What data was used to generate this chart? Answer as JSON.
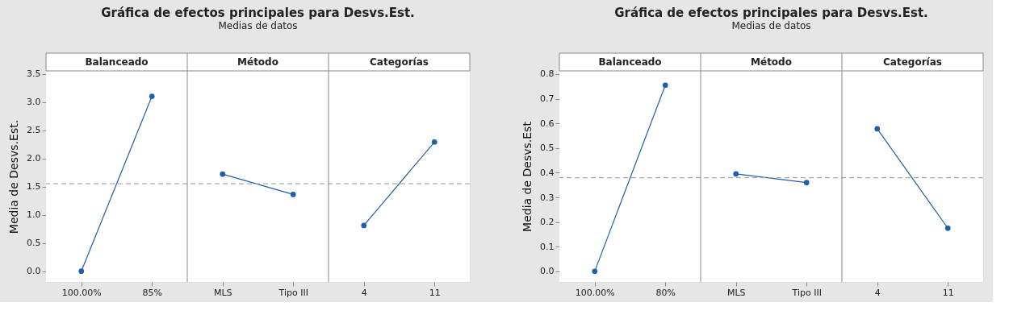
{
  "chart_data": [
    {
      "type": "line",
      "title": "Gráfica de efectos principales para Desvs.Est.",
      "subtitle": "Medias de datos",
      "ylabel": "Media de Desvs.Est.",
      "categories": [
        "100.00%",
        "85%",
        "MLS",
        "Tipo III",
        "4",
        "11"
      ],
      "annotations": [
        "Balanceado",
        "Método",
        "Categorías"
      ],
      "series": [
        {
          "color": "#1f5fae",
          "values": [
            0.0,
            3.1,
            null,
            null,
            null,
            null
          ]
        },
        {
          "color": "#1f5fae",
          "values": [
            null,
            null,
            1.72,
            1.36,
            null,
            null
          ]
        },
        {
          "color": "#1f5fae",
          "values": [
            null,
            null,
            null,
            null,
            0.81,
            2.29
          ]
        }
      ],
      "ylim": [
        -0.19,
        3.55
      ],
      "yticks": [
        {
          "value": 0,
          "label": "0.0"
        },
        0.5,
        {
          "value": 1,
          "label": "1.0"
        },
        1.5,
        {
          "value": 2,
          "label": "2.0"
        },
        2.5,
        {
          "value": 3,
          "label": "3.0"
        },
        3.5
      ],
      "ref_lines": [
        {
          "axis": "y",
          "value": 1.55,
          "color": "#aaaaaa",
          "line_style": "dashed"
        }
      ],
      "marker": "circle",
      "legend": false
    },
    {
      "type": "line",
      "title": "Gráfica de efectos principales para Desvs.Est.",
      "subtitle": "Medias de datos",
      "ylabel": "Media de Desvs.Est",
      "categories": [
        "100.00%",
        "80%",
        "MLS",
        "Tipo III",
        "4",
        "11"
      ],
      "annotations": [
        "Balanceado",
        "Método",
        "Categorías"
      ],
      "series": [
        {
          "color": "#1f5fae",
          "values": [
            0.0,
            0.755,
            null,
            null,
            null,
            null
          ]
        },
        {
          "color": "#1f5fae",
          "values": [
            null,
            null,
            0.395,
            0.36,
            null,
            null
          ]
        },
        {
          "color": "#1f5fae",
          "values": [
            null,
            null,
            null,
            null,
            0.578,
            0.175
          ]
        }
      ],
      "ylim": [
        -0.043,
        0.813
      ],
      "yticks": [
        {
          "value": 0,
          "label": "0.0"
        },
        0.1,
        0.2,
        0.3,
        0.4,
        0.5,
        0.6,
        0.7,
        0.8
      ],
      "ref_lines": [
        {
          "axis": "y",
          "value": 0.38,
          "color": "#aaaaaa",
          "line_style": "dashed"
        }
      ],
      "marker": "circle",
      "legend": false
    }
  ]
}
